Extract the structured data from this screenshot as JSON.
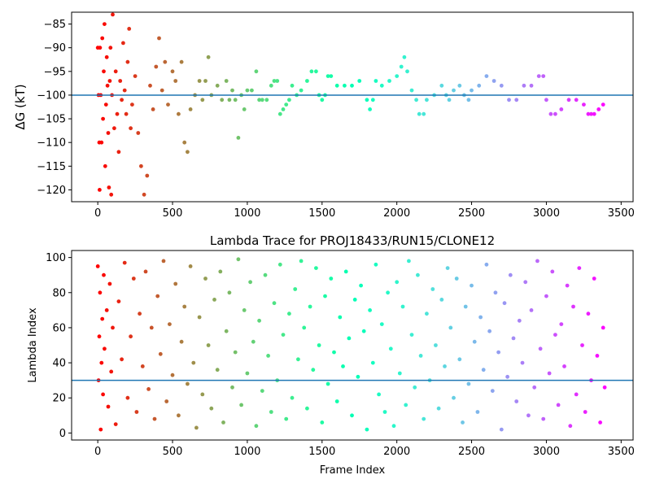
{
  "figure": {
    "background": "#ffffff",
    "colormap": "rainbow",
    "reference_line_color": "#1f77b4"
  },
  "chart_data": [
    {
      "type": "scatter",
      "title": "",
      "xlabel": "",
      "ylabel": "ΔG (kT)",
      "xlim": [
        -175,
        3580
      ],
      "ylim": [
        -122.5,
        -82.5
      ],
      "xticks": [
        0,
        500,
        1000,
        1500,
        2000,
        2500,
        3000,
        3500
      ],
      "yticks": [
        -120,
        -115,
        -110,
        -105,
        -100,
        -95,
        -90,
        -85
      ],
      "hline": -100,
      "grid": false,
      "legend": "none",
      "color_by": "frame index (rainbow, red at start to violet at end)",
      "description": "Scatter of free-energy estimate per frame; early frames (0–350) widely scattered between about -121 and -83, later frames converge to a stepwise trace between about -105 and -92.",
      "points": [
        [
          0,
          -90
        ],
        [
          5,
          -100
        ],
        [
          10,
          -110
        ],
        [
          12,
          -120
        ],
        [
          15,
          -90
        ],
        [
          20,
          -100
        ],
        [
          25,
          -110
        ],
        [
          30,
          -88
        ],
        [
          35,
          -105
        ],
        [
          40,
          -95
        ],
        [
          45,
          -85
        ],
        [
          50,
          -115
        ],
        [
          55,
          -102
        ],
        [
          60,
          -92
        ],
        [
          65,
          -98
        ],
        [
          70,
          -108
        ],
        [
          75,
          -119.5
        ],
        [
          80,
          -97
        ],
        [
          85,
          -90
        ],
        [
          90,
          -121
        ],
        [
          95,
          -100
        ],
        [
          100,
          -83
        ],
        [
          110,
          -107
        ],
        [
          120,
          -95
        ],
        [
          130,
          -104
        ],
        [
          140,
          -112
        ],
        [
          150,
          -97
        ],
        [
          160,
          -101
        ],
        [
          170,
          -89
        ],
        [
          180,
          -99
        ],
        [
          190,
          -104
        ],
        [
          200,
          -93
        ],
        [
          210,
          -86
        ],
        [
          220,
          -107
        ],
        [
          230,
          -102
        ],
        [
          250,
          -96
        ],
        [
          270,
          -108
        ],
        [
          290,
          -115
        ],
        [
          310,
          -121
        ],
        [
          330,
          -117
        ],
        [
          350,
          -98
        ],
        [
          370,
          -103
        ],
        [
          390,
          -94
        ],
        [
          410,
          -88
        ],
        [
          430,
          -99
        ],
        [
          450,
          -93
        ],
        [
          470,
          -102
        ],
        [
          500,
          -95
        ],
        [
          520,
          -97
        ],
        [
          540,
          -104
        ],
        [
          560,
          -93
        ],
        [
          580,
          -110
        ],
        [
          600,
          -112
        ],
        [
          620,
          -103
        ],
        [
          650,
          -100
        ],
        [
          680,
          -97
        ],
        [
          700,
          -101
        ],
        [
          720,
          -97
        ],
        [
          740,
          -92
        ],
        [
          760,
          -100
        ],
        [
          800,
          -98
        ],
        [
          830,
          -101
        ],
        [
          860,
          -97
        ],
        [
          880,
          -101
        ],
        [
          900,
          -99
        ],
        [
          920,
          -101
        ],
        [
          940,
          -109
        ],
        [
          960,
          -100
        ],
        [
          980,
          -103
        ],
        [
          1000,
          -99
        ],
        [
          1030,
          -99
        ],
        [
          1060,
          -95
        ],
        [
          1080,
          -101
        ],
        [
          1100,
          -101
        ],
        [
          1130,
          -101
        ],
        [
          1160,
          -98
        ],
        [
          1180,
          -97
        ],
        [
          1200,
          -97
        ],
        [
          1220,
          -104
        ],
        [
          1240,
          -103
        ],
        [
          1260,
          -102
        ],
        [
          1280,
          -101
        ],
        [
          1300,
          -98
        ],
        [
          1330,
          -100
        ],
        [
          1360,
          -99
        ],
        [
          1400,
          -97
        ],
        [
          1430,
          -95
        ],
        [
          1460,
          -95
        ],
        [
          1480,
          -100
        ],
        [
          1500,
          -101
        ],
        [
          1520,
          -100
        ],
        [
          1540,
          -96
        ],
        [
          1560,
          -96
        ],
        [
          1600,
          -98
        ],
        [
          1650,
          -98
        ],
        [
          1700,
          -98
        ],
        [
          1750,
          -97
        ],
        [
          1800,
          -101
        ],
        [
          1820,
          -103
        ],
        [
          1840,
          -101
        ],
        [
          1860,
          -97
        ],
        [
          1900,
          -98
        ],
        [
          1950,
          -97
        ],
        [
          2000,
          -96
        ],
        [
          2030,
          -94
        ],
        [
          2050,
          -92
        ],
        [
          2070,
          -95
        ],
        [
          2100,
          -99
        ],
        [
          2130,
          -101
        ],
        [
          2150,
          -104
        ],
        [
          2180,
          -104
        ],
        [
          2200,
          -101
        ],
        [
          2250,
          -100
        ],
        [
          2300,
          -98
        ],
        [
          2330,
          -100
        ],
        [
          2350,
          -101
        ],
        [
          2380,
          -99
        ],
        [
          2420,
          -98
        ],
        [
          2450,
          -100
        ],
        [
          2480,
          -101
        ],
        [
          2500,
          -99
        ],
        [
          2550,
          -98
        ],
        [
          2600,
          -96
        ],
        [
          2650,
          -97
        ],
        [
          2700,
          -98
        ],
        [
          2750,
          -101
        ],
        [
          2800,
          -101
        ],
        [
          2850,
          -98
        ],
        [
          2900,
          -98
        ],
        [
          2950,
          -96
        ],
        [
          2980,
          -96
        ],
        [
          3000,
          -101
        ],
        [
          3030,
          -104
        ],
        [
          3060,
          -104
        ],
        [
          3100,
          -103
        ],
        [
          3150,
          -101
        ],
        [
          3200,
          -101
        ],
        [
          3250,
          -102
        ],
        [
          3280,
          -104
        ],
        [
          3300,
          -104
        ],
        [
          3320,
          -104
        ],
        [
          3350,
          -103
        ],
        [
          3380,
          -102
        ]
      ]
    },
    {
      "type": "scatter",
      "title": "Lambda Trace for PROJ18433/RUN15/CLONE12",
      "xlabel": "Frame Index",
      "ylabel": "Lambda Index",
      "xlim": [
        -175,
        3580
      ],
      "ylim": [
        -4,
        104
      ],
      "xticks": [
        0,
        500,
        1000,
        1500,
        2000,
        2500,
        3000,
        3500
      ],
      "yticks": [
        0,
        20,
        40,
        60,
        80,
        100
      ],
      "hline": 30,
      "grid": false,
      "legend": "none",
      "color_by": "frame index (rainbow, red at start to violet at end)",
      "description": "Lambda index (0–100) visited per frame; dense random scatter over the whole range for frames 0–3400, arranged in vertical columns.",
      "points": [
        [
          0,
          95
        ],
        [
          5,
          30
        ],
        [
          10,
          55
        ],
        [
          15,
          80
        ],
        [
          20,
          2
        ],
        [
          25,
          40
        ],
        [
          30,
          65
        ],
        [
          35,
          22
        ],
        [
          40,
          90
        ],
        [
          45,
          48
        ],
        [
          60,
          70
        ],
        [
          70,
          15
        ],
        [
          80,
          85
        ],
        [
          90,
          35
        ],
        [
          100,
          60
        ],
        [
          120,
          5
        ],
        [
          140,
          75
        ],
        [
          160,
          42
        ],
        [
          180,
          97
        ],
        [
          200,
          20
        ],
        [
          220,
          55
        ],
        [
          240,
          88
        ],
        [
          260,
          12
        ],
        [
          280,
          68
        ],
        [
          300,
          38
        ],
        [
          320,
          92
        ],
        [
          340,
          25
        ],
        [
          360,
          60
        ],
        [
          380,
          8
        ],
        [
          400,
          78
        ],
        [
          420,
          45
        ],
        [
          440,
          98
        ],
        [
          460,
          18
        ],
        [
          480,
          62
        ],
        [
          500,
          33
        ],
        [
          520,
          85
        ],
        [
          540,
          10
        ],
        [
          560,
          52
        ],
        [
          580,
          72
        ],
        [
          600,
          28
        ],
        [
          620,
          95
        ],
        [
          640,
          40
        ],
        [
          660,
          3
        ],
        [
          680,
          66
        ],
        [
          700,
          22
        ],
        [
          720,
          88
        ],
        [
          740,
          50
        ],
        [
          760,
          14
        ],
        [
          780,
          76
        ],
        [
          800,
          36
        ],
        [
          820,
          92
        ],
        [
          840,
          6
        ],
        [
          860,
          58
        ],
        [
          880,
          80
        ],
        [
          900,
          26
        ],
        [
          920,
          46
        ],
        [
          940,
          99
        ],
        [
          960,
          16
        ],
        [
          980,
          70
        ],
        [
          1000,
          34
        ],
        [
          1020,
          86
        ],
        [
          1040,
          52
        ],
        [
          1060,
          4
        ],
        [
          1080,
          64
        ],
        [
          1100,
          24
        ],
        [
          1120,
          90
        ],
        [
          1140,
          44
        ],
        [
          1160,
          12
        ],
        [
          1180,
          74
        ],
        [
          1200,
          30
        ],
        [
          1220,
          96
        ],
        [
          1240,
          56
        ],
        [
          1260,
          8
        ],
        [
          1280,
          68
        ],
        [
          1300,
          20
        ],
        [
          1320,
          82
        ],
        [
          1340,
          42
        ],
        [
          1360,
          98
        ],
        [
          1380,
          60
        ],
        [
          1400,
          14
        ],
        [
          1420,
          72
        ],
        [
          1440,
          36
        ],
        [
          1460,
          94
        ],
        [
          1480,
          50
        ],
        [
          1500,
          6
        ],
        [
          1520,
          78
        ],
        [
          1540,
          28
        ],
        [
          1560,
          88
        ],
        [
          1580,
          46
        ],
        [
          1600,
          18
        ],
        [
          1620,
          66
        ],
        [
          1640,
          38
        ],
        [
          1660,
          92
        ],
        [
          1680,
          54
        ],
        [
          1700,
          10
        ],
        [
          1720,
          76
        ],
        [
          1740,
          32
        ],
        [
          1760,
          84
        ],
        [
          1780,
          58
        ],
        [
          1800,
          2
        ],
        [
          1820,
          70
        ],
        [
          1840,
          40
        ],
        [
          1860,
          96
        ],
        [
          1880,
          22
        ],
        [
          1900,
          62
        ],
        [
          1920,
          12
        ],
        [
          1940,
          80
        ],
        [
          1960,
          48
        ],
        [
          1980,
          4
        ],
        [
          2000,
          86
        ],
        [
          2020,
          34
        ],
        [
          2040,
          72
        ],
        [
          2060,
          16
        ],
        [
          2080,
          98
        ],
        [
          2100,
          56
        ],
        [
          2120,
          26
        ],
        [
          2140,
          90
        ],
        [
          2160,
          44
        ],
        [
          2180,
          8
        ],
        [
          2200,
          68
        ],
        [
          2220,
          30
        ],
        [
          2240,
          82
        ],
        [
          2260,
          50
        ],
        [
          2280,
          14
        ],
        [
          2300,
          76
        ],
        [
          2320,
          38
        ],
        [
          2340,
          94
        ],
        [
          2360,
          60
        ],
        [
          2380,
          20
        ],
        [
          2400,
          88
        ],
        [
          2420,
          42
        ],
        [
          2440,
          6
        ],
        [
          2460,
          72
        ],
        [
          2480,
          28
        ],
        [
          2500,
          84
        ],
        [
          2520,
          52
        ],
        [
          2540,
          12
        ],
        [
          2560,
          66
        ],
        [
          2580,
          36
        ],
        [
          2600,
          96
        ],
        [
          2620,
          58
        ],
        [
          2640,
          24
        ],
        [
          2660,
          80
        ],
        [
          2680,
          46
        ],
        [
          2700,
          2
        ],
        [
          2720,
          74
        ],
        [
          2740,
          32
        ],
        [
          2760,
          90
        ],
        [
          2780,
          54
        ],
        [
          2800,
          18
        ],
        [
          2820,
          64
        ],
        [
          2840,
          40
        ],
        [
          2860,
          86
        ],
        [
          2880,
          10
        ],
        [
          2900,
          70
        ],
        [
          2920,
          26
        ],
        [
          2940,
          98
        ],
        [
          2960,
          48
        ],
        [
          2980,
          8
        ],
        [
          3000,
          78
        ],
        [
          3020,
          34
        ],
        [
          3040,
          92
        ],
        [
          3060,
          56
        ],
        [
          3080,
          16
        ],
        [
          3100,
          62
        ],
        [
          3120,
          38
        ],
        [
          3140,
          84
        ],
        [
          3160,
          4
        ],
        [
          3180,
          72
        ],
        [
          3200,
          22
        ],
        [
          3220,
          94
        ],
        [
          3240,
          50
        ],
        [
          3260,
          12
        ],
        [
          3280,
          68
        ],
        [
          3300,
          30
        ],
        [
          3320,
          88
        ],
        [
          3340,
          44
        ],
        [
          3360,
          6
        ],
        [
          3380,
          60
        ],
        [
          3390,
          26
        ]
      ]
    }
  ]
}
